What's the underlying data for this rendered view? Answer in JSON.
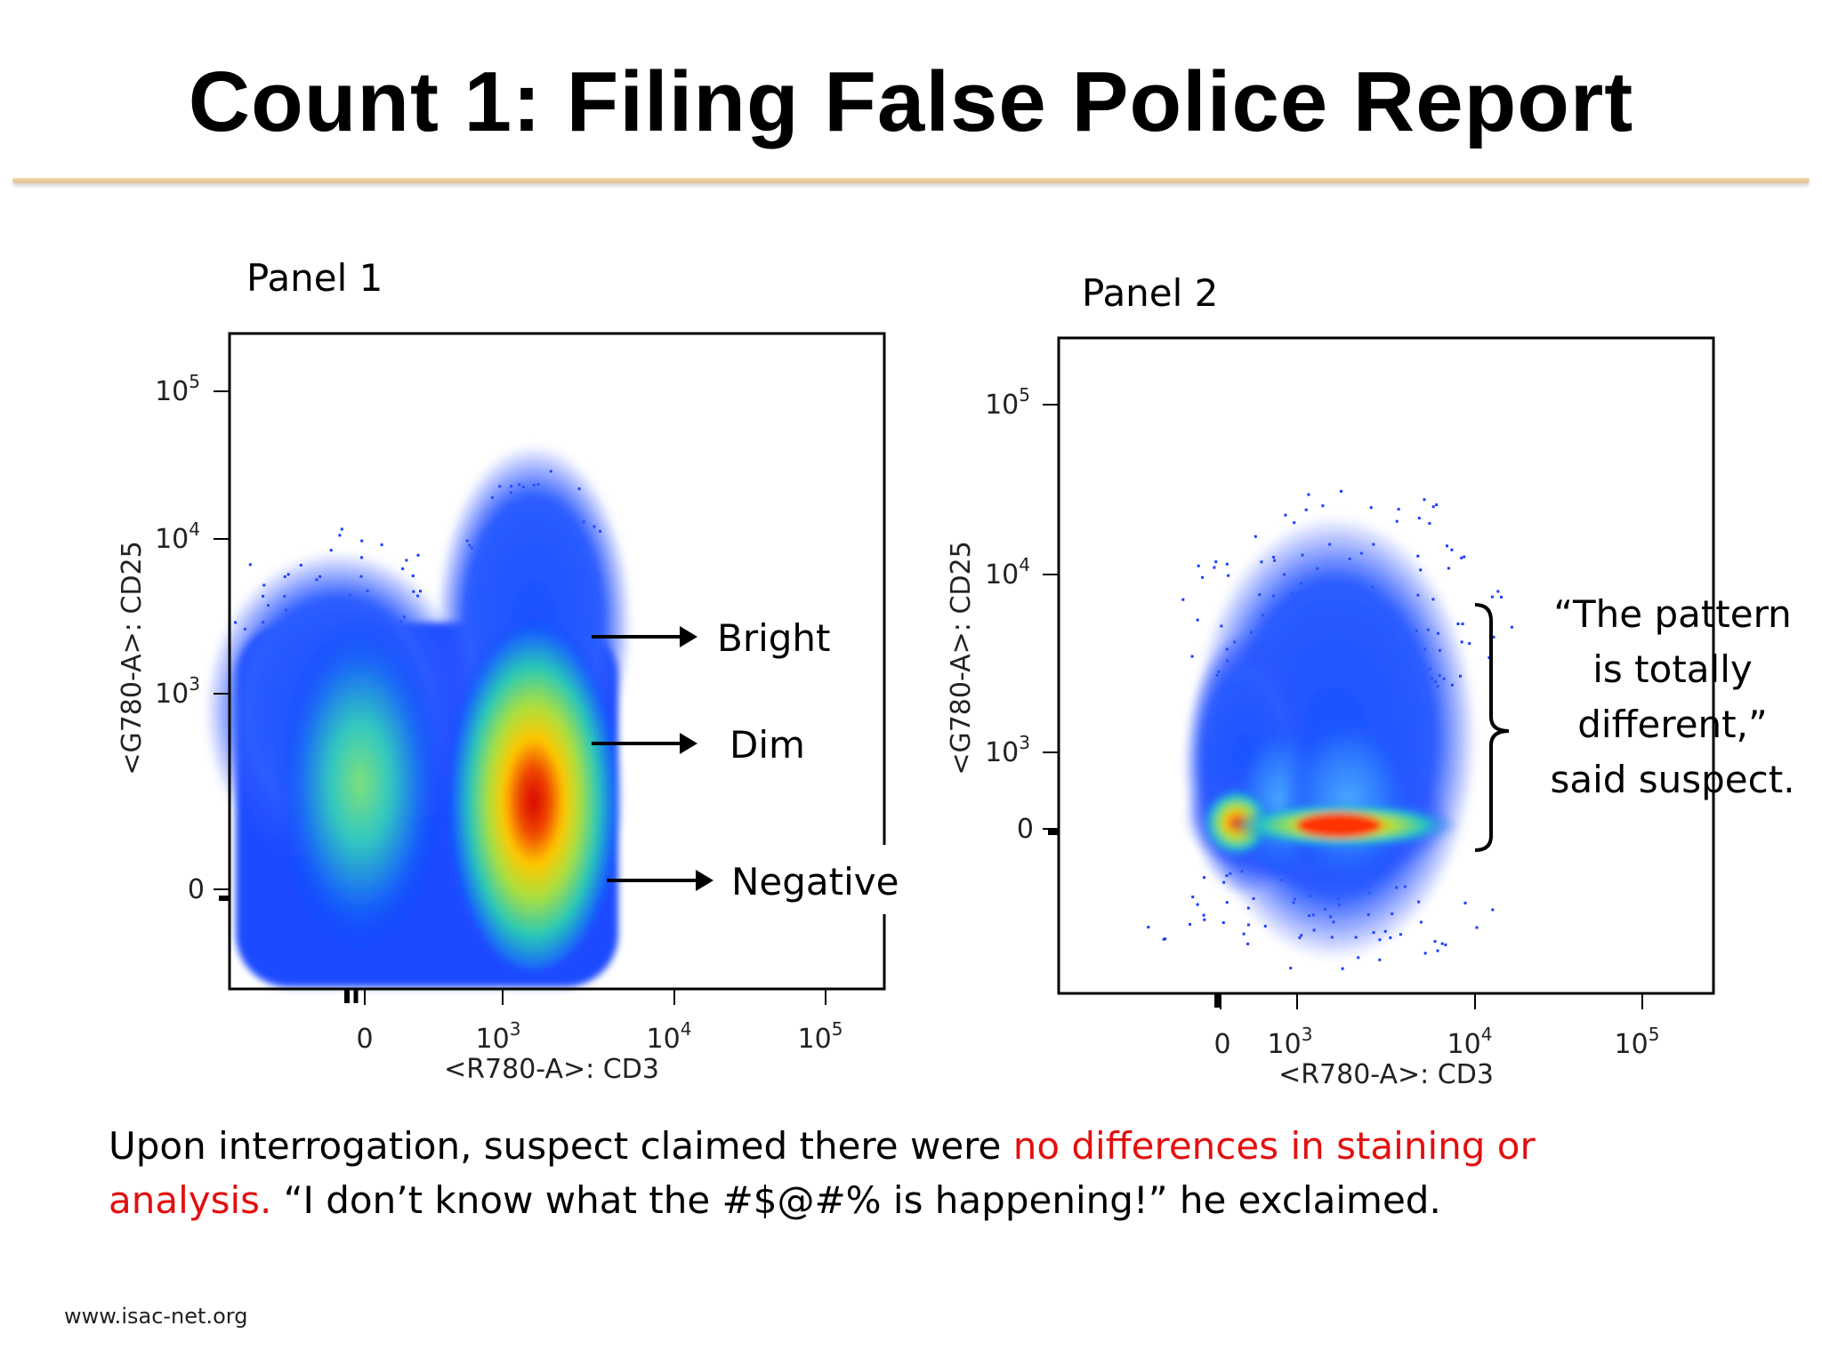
{
  "slide": {
    "title": "Count 1: Filing False Police Report",
    "footer": "www.isac-net.org"
  },
  "panel1": {
    "label": "Panel 1",
    "x_axis_label": "<R780-A>: CD3",
    "y_axis_label": "<G780-A>: CD25",
    "x_ticks": [
      {
        "base": "0",
        "exp": ""
      },
      {
        "base": "10",
        "exp": "3"
      },
      {
        "base": "10",
        "exp": "4"
      },
      {
        "base": "10",
        "exp": "5"
      }
    ],
    "y_ticks": [
      {
        "base": "0",
        "exp": ""
      },
      {
        "base": "10",
        "exp": "3"
      },
      {
        "base": "10",
        "exp": "4"
      },
      {
        "base": "10",
        "exp": "5"
      }
    ],
    "annotations": [
      "Bright",
      "Dim",
      "Negative"
    ]
  },
  "panel2": {
    "label": "Panel 2",
    "x_axis_label": "<R780-A>: CD3",
    "y_axis_label": "<G780-A>: CD25",
    "x_ticks": [
      {
        "base": "0",
        "exp": ""
      },
      {
        "base": "10",
        "exp": "3"
      },
      {
        "base": "10",
        "exp": "4"
      },
      {
        "base": "10",
        "exp": "5"
      }
    ],
    "y_ticks": [
      {
        "base": "0",
        "exp": ""
      },
      {
        "base": "10",
        "exp": "3"
      },
      {
        "base": "10",
        "exp": "4"
      },
      {
        "base": "10",
        "exp": "5"
      }
    ],
    "quote_lines": [
      "“The pattern",
      "is totally",
      "different,”",
      "said suspect."
    ]
  },
  "caption": {
    "part1": "Upon interrogation, suspect claimed there were ",
    "highlight": "no differences in staining or analysis.",
    "part2": "  “I don’t know what the #$@#% is happening!” he exclaimed."
  },
  "colors": {
    "highlight": "#e30f0f",
    "density_low": "#0000ff",
    "density_mid": "#00d0c0",
    "density_high": "#ffe000",
    "density_peak": "#e00000"
  }
}
